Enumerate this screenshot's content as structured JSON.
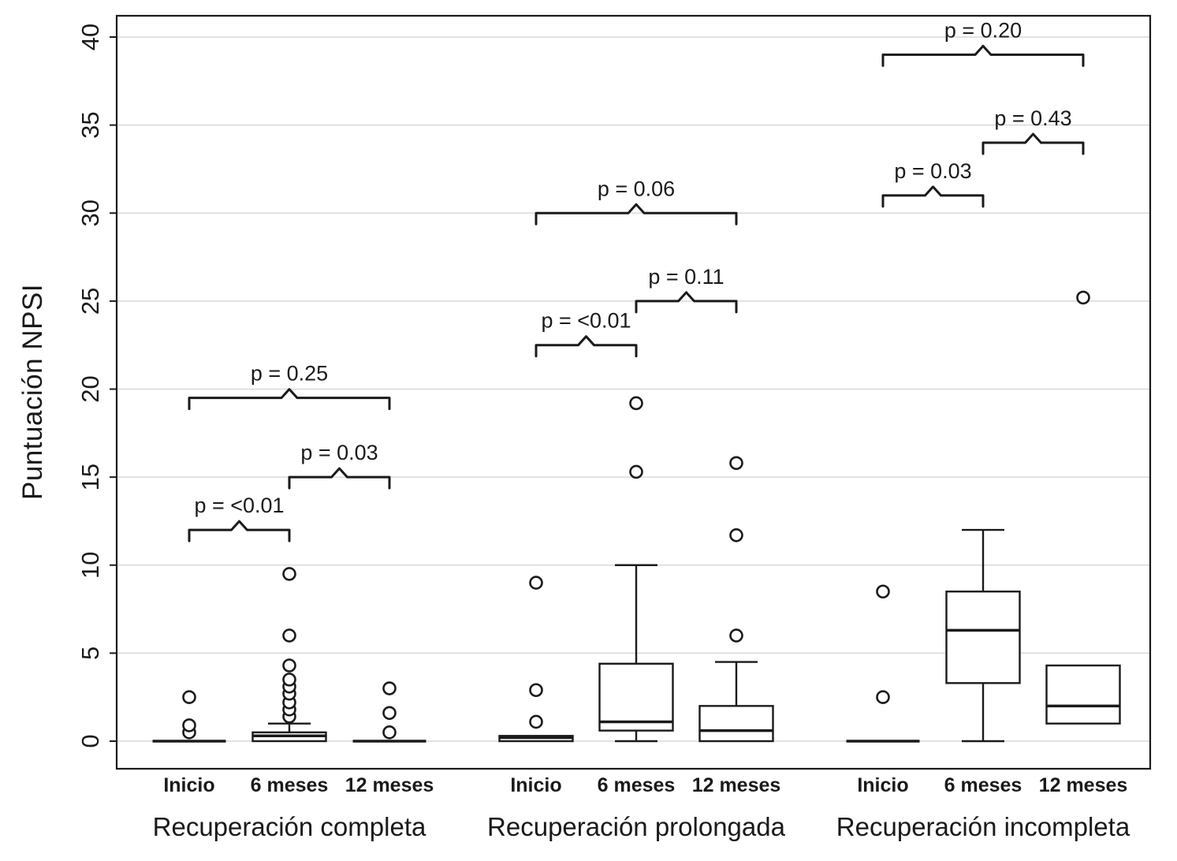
{
  "colors": {
    "ink": "#1a1a1a",
    "gridline": "#d9d9d9",
    "box_fill": "#ffffff"
  },
  "chart_data": {
    "type": "boxplot",
    "title": "",
    "ylabel": "Puntuación NPSI",
    "xlabel": "",
    "ylim": [
      0,
      40
    ],
    "yticks": [
      0,
      5,
      10,
      15,
      20,
      25,
      30,
      35,
      40
    ],
    "grid": true,
    "legend": false,
    "groups": [
      {
        "label": "Recuperación completa",
        "boxes": [
          {
            "label": "Inicio",
            "q1": 0,
            "median": 0,
            "q3": 0,
            "whisker_low": 0,
            "whisker_high": 0,
            "outliers": [
              0.5,
              0.9,
              2.5
            ]
          },
          {
            "label": "6 meses",
            "q1": 0,
            "median": 0.3,
            "q3": 0.5,
            "whisker_low": 0,
            "whisker_high": 1.0,
            "outliers": [
              1.4,
              1.8,
              2.2,
              2.7,
              3.1,
              3.5,
              4.3,
              6.0,
              9.5
            ]
          },
          {
            "label": "12 meses",
            "q1": 0,
            "median": 0,
            "q3": 0,
            "whisker_low": 0,
            "whisker_high": 0,
            "outliers": [
              0.5,
              1.6,
              3.0
            ]
          }
        ],
        "p_values": [
          {
            "label": "p = <0.01",
            "from": 0,
            "to": 1,
            "y": 12.0
          },
          {
            "label": "p = 0.03",
            "from": 1,
            "to": 2,
            "y": 15.0
          },
          {
            "label": "p = 0.25",
            "from": 0,
            "to": 2,
            "y": 19.5
          }
        ]
      },
      {
        "label": "Recuperación prolongada",
        "boxes": [
          {
            "label": "Inicio",
            "q1": 0,
            "median": 0.2,
            "q3": 0.3,
            "whisker_low": 0,
            "whisker_high": 0.3,
            "outliers": [
              1.1,
              2.9,
              9.0
            ]
          },
          {
            "label": "6 meses",
            "q1": 0.6,
            "median": 1.1,
            "q3": 4.4,
            "whisker_low": 0,
            "whisker_high": 10.0,
            "outliers": [
              15.3,
              19.2
            ]
          },
          {
            "label": "12 meses",
            "q1": 0,
            "median": 0.6,
            "q3": 2.0,
            "whisker_low": 0,
            "whisker_high": 4.5,
            "outliers": [
              6.0,
              11.7,
              15.8
            ]
          }
        ],
        "p_values": [
          {
            "label": "p = <0.01",
            "from": 0,
            "to": 1,
            "y": 22.5
          },
          {
            "label": "p = 0.11",
            "from": 1,
            "to": 2,
            "y": 25.0
          },
          {
            "label": "p = 0.06",
            "from": 0,
            "to": 2,
            "y": 30.0
          }
        ]
      },
      {
        "label": "Recuperación incompleta",
        "boxes": [
          {
            "label": "Inicio",
            "q1": 0,
            "median": 0,
            "q3": 0,
            "whisker_low": 0,
            "whisker_high": 0,
            "outliers": [
              2.5,
              8.5
            ]
          },
          {
            "label": "6 meses",
            "q1": 3.3,
            "median": 6.3,
            "q3": 8.5,
            "whisker_low": 0,
            "whisker_high": 12.0,
            "outliers": []
          },
          {
            "label": "12 meses",
            "q1": 1.0,
            "median": 2.0,
            "q3": 4.3,
            "whisker_low": 1.0,
            "whisker_high": 4.3,
            "outliers": [
              25.2
            ]
          }
        ],
        "p_values": [
          {
            "label": "p = 0.03",
            "from": 0,
            "to": 1,
            "y": 31.0
          },
          {
            "label": "p = 0.43",
            "from": 1,
            "to": 2,
            "y": 34.0
          },
          {
            "label": "p = 0.20",
            "from": 0,
            "to": 2,
            "y": 39.0
          }
        ]
      }
    ]
  }
}
